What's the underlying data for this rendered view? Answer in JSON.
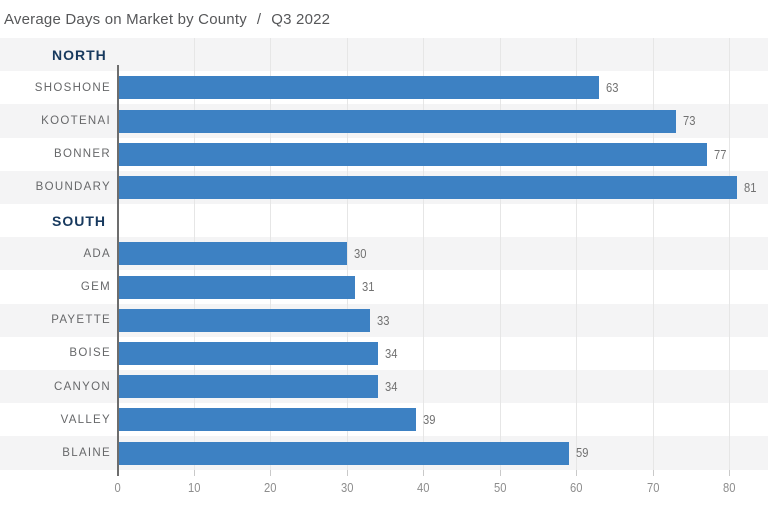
{
  "title": {
    "text": "Average Days on Market by County",
    "separator": "/",
    "period": "Q3 2022"
  },
  "colors": {
    "bar": "#3d81c3",
    "band_stripe": "#f4f4f5",
    "group_header": "#17395e",
    "gridline": "#e6e6e6",
    "axis_line": "#6d6d6d",
    "value_label": "#717171",
    "tick_label": "#8d8d8d"
  },
  "chart_data": {
    "type": "bar",
    "orientation": "horizontal",
    "title": "Average Days on Market by County / Q3 2022",
    "xlabel": "",
    "ylabel": "",
    "xlim": [
      0,
      85
    ],
    "x_ticks": [
      0,
      10,
      20,
      30,
      40,
      50,
      60,
      70,
      80
    ],
    "grid": true,
    "legend": false,
    "groups": [
      {
        "label": "NORTH",
        "rows": [
          {
            "county": "SHOSHONE",
            "value": 63
          },
          {
            "county": "KOOTENAI",
            "value": 73
          },
          {
            "county": "BONNER",
            "value": 77
          },
          {
            "county": "BOUNDARY",
            "value": 81
          }
        ]
      },
      {
        "label": "SOUTH",
        "rows": [
          {
            "county": "ADA",
            "value": 30
          },
          {
            "county": "GEM",
            "value": 31
          },
          {
            "county": "PAYETTE",
            "value": 33
          },
          {
            "county": "BOISE",
            "value": 34
          },
          {
            "county": "CANYON",
            "value": 34
          },
          {
            "county": "VALLEY",
            "value": 39
          },
          {
            "county": "BLAINE",
            "value": 59
          }
        ]
      }
    ]
  }
}
